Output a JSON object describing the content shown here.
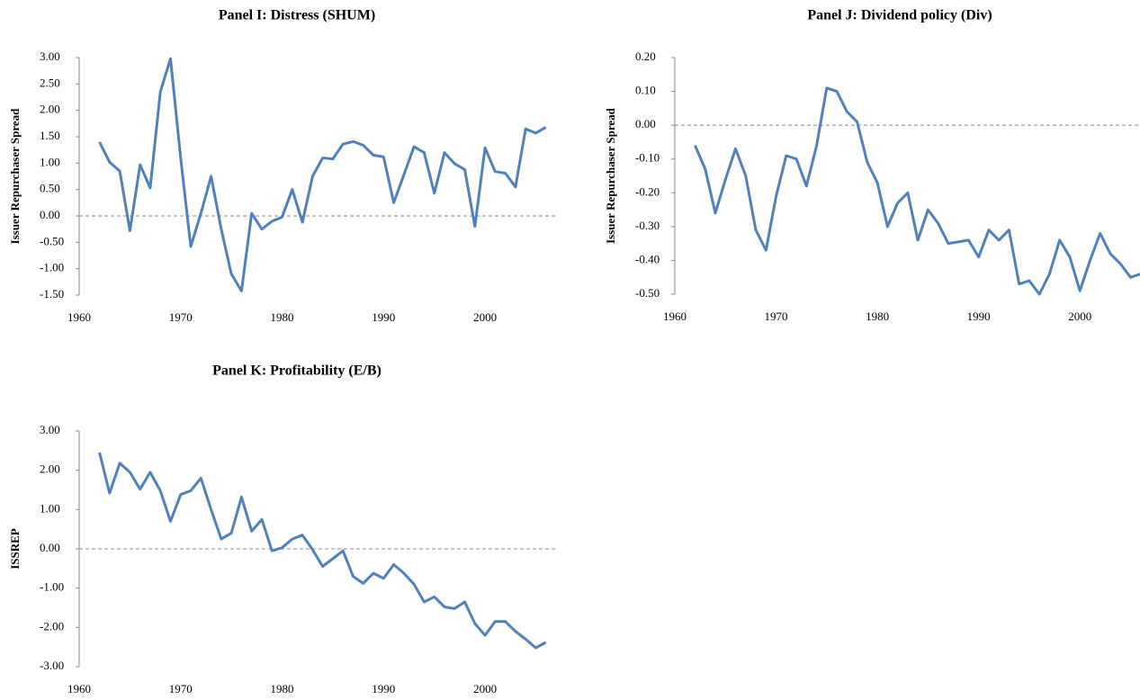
{
  "chart_data": [
    {
      "type": "line",
      "title": "Panel I: Distress (SHUM)",
      "y_label": "Issuer Repurchaser  Spread",
      "x": [
        1962,
        1963,
        1964,
        1965,
        1966,
        1967,
        1968,
        1969,
        1970,
        1971,
        1972,
        1973,
        1974,
        1975,
        1976,
        1977,
        1978,
        1979,
        1980,
        1981,
        1982,
        1983,
        1984,
        1985,
        1986,
        1987,
        1988,
        1989,
        1990,
        1991,
        1992,
        1993,
        1994,
        1995,
        1996,
        1997,
        1998,
        1999,
        2000,
        2001,
        2002,
        2003,
        2004,
        2005,
        2006
      ],
      "series": [
        {
          "color": "#4f81bd",
          "values": [
            1.4,
            1.02,
            0.85,
            -0.28,
            0.97,
            0.53,
            2.35,
            2.98,
            1.1,
            -0.58,
            0.05,
            0.75,
            -0.25,
            -1.1,
            -1.42,
            0.05,
            -0.25,
            -0.1,
            -0.02,
            0.5,
            -0.12,
            0.75,
            1.1,
            1.08,
            1.36,
            1.41,
            1.34,
            1.15,
            1.12,
            0.25,
            0.78,
            1.31,
            1.2,
            0.43,
            1.2,
            0.99,
            0.88,
            -0.2,
            1.29,
            0.84,
            0.81,
            0.55,
            1.65,
            1.57,
            1.68
          ]
        }
      ],
      "xlim": [
        1960,
        2007
      ],
      "xticks": [
        1960,
        1970,
        1980,
        1990,
        2000
      ],
      "ylim": [
        -1.5,
        3
      ],
      "yticks": [
        {
          "value": 3,
          "label": "3.00"
        },
        {
          "value": 2.5,
          "label": "2.50"
        },
        {
          "value": 2,
          "label": "2.00"
        },
        {
          "value": 1.5,
          "label": "1.50"
        },
        {
          "value": 1,
          "label": "1.00"
        },
        {
          "value": 0.5,
          "label": "0.50"
        },
        {
          "value": 0,
          "label": "0.00"
        },
        {
          "value": -0.5,
          "label": "-0.50"
        },
        {
          "value": -1,
          "label": "-1.00"
        },
        {
          "value": -1.5,
          "label": "-1.50"
        }
      ],
      "zero_line": true
    },
    {
      "type": "line",
      "title": "Panel J: Dividend policy (Div)",
      "y_label": "Issuer Repurchaser  Spread",
      "x": [
        1962,
        1963,
        1964,
        1965,
        1966,
        1967,
        1968,
        1969,
        1970,
        1971,
        1972,
        1973,
        1974,
        1975,
        1976,
        1977,
        1978,
        1979,
        1980,
        1981,
        1982,
        1983,
        1984,
        1985,
        1986,
        1987,
        1988,
        1989,
        1990,
        1991,
        1992,
        1993,
        1994,
        1995,
        1996,
        1997,
        1998,
        1999,
        2000,
        2001,
        2002,
        2003,
        2004,
        2005,
        2006
      ],
      "series": [
        {
          "color": "#4f81bd",
          "values": [
            -0.06,
            -0.13,
            -0.26,
            -0.16,
            -0.07,
            -0.15,
            -0.31,
            -0.37,
            -0.21,
            -0.09,
            -0.1,
            -0.18,
            -0.06,
            0.11,
            0.1,
            0.04,
            0.01,
            -0.11,
            -0.17,
            -0.3,
            -0.23,
            -0.2,
            -0.34,
            -0.25,
            -0.29,
            -0.35,
            -0.345,
            -0.34,
            -0.39,
            -0.31,
            -0.34,
            -0.31,
            -0.47,
            -0.46,
            -0.5,
            -0.44,
            -0.34,
            -0.39,
            -0.49,
            -0.4,
            -0.32,
            -0.38,
            -0.41,
            -0.45,
            -0.44
          ]
        }
      ],
      "xlim": [
        1960,
        2007
      ],
      "xticks": [
        1960,
        1970,
        1980,
        1990,
        2000
      ],
      "ylim": [
        -0.5,
        0.2
      ],
      "yticks": [
        {
          "value": 0.2,
          "label": "0.20"
        },
        {
          "value": 0.1,
          "label": "0.10"
        },
        {
          "value": 0,
          "label": "0.00"
        },
        {
          "value": -0.1,
          "label": "-0.10"
        },
        {
          "value": -0.2,
          "label": "-0.20"
        },
        {
          "value": -0.3,
          "label": "-0.30"
        },
        {
          "value": -0.4,
          "label": "-0.40"
        },
        {
          "value": -0.5,
          "label": "-0.50"
        }
      ],
      "zero_line": true
    },
    {
      "type": "line",
      "title": "Panel K: Profitability (E/B)",
      "y_label": "ISSREP",
      "x": [
        1962,
        1963,
        1964,
        1965,
        1966,
        1967,
        1968,
        1969,
        1970,
        1971,
        1972,
        1973,
        1974,
        1975,
        1976,
        1977,
        1978,
        1979,
        1980,
        1981,
        1982,
        1983,
        1984,
        1985,
        1986,
        1987,
        1988,
        1989,
        1990,
        1991,
        1992,
        1993,
        1994,
        1995,
        1996,
        1997,
        1998,
        1999,
        2000,
        2001,
        2002,
        2003,
        2004,
        2005,
        2006
      ],
      "series": [
        {
          "color": "#4f81bd",
          "values": [
            2.45,
            1.42,
            2.18,
            1.95,
            1.52,
            1.95,
            1.48,
            0.7,
            1.38,
            1.48,
            1.8,
            1.0,
            0.25,
            0.4,
            1.32,
            0.45,
            0.75,
            -0.05,
            0.03,
            0.25,
            0.35,
            -0.02,
            -0.45,
            -0.25,
            -0.05,
            -0.7,
            -0.88,
            -0.62,
            -0.75,
            -0.4,
            -0.62,
            -0.9,
            -1.35,
            -1.22,
            -1.48,
            -1.52,
            -1.35,
            -1.9,
            -2.2,
            -1.85,
            -1.85,
            -2.1,
            -2.3,
            -2.52,
            -2.38
          ]
        }
      ],
      "xlim": [
        1960,
        2007
      ],
      "xticks": [
        1960,
        1970,
        1980,
        1990,
        2000
      ],
      "ylim": [
        -3,
        3
      ],
      "yticks": [
        {
          "value": 3,
          "label": "3.00"
        },
        {
          "value": 2,
          "label": "2.00"
        },
        {
          "value": 1,
          "label": "1.00"
        },
        {
          "value": 0,
          "label": "0.00"
        },
        {
          "value": -1,
          "label": "-1.00"
        },
        {
          "value": -2,
          "label": "-2.00"
        },
        {
          "value": -3,
          "label": "-3.00"
        }
      ],
      "zero_line": true
    }
  ]
}
